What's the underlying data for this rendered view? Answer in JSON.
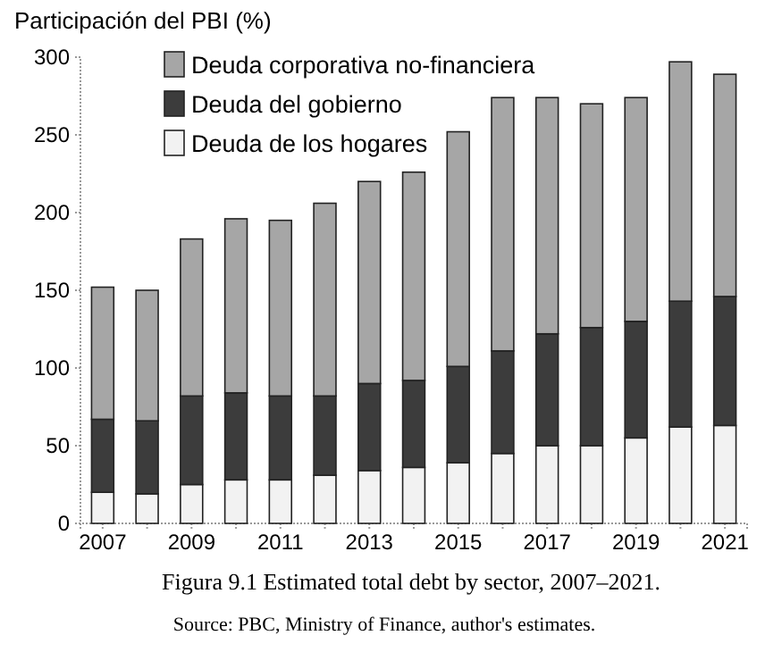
{
  "chart_data": {
    "type": "bar",
    "stacked": true,
    "title": "Figura 9.1 Estimated total debt by sector, 2007–2021.",
    "ylabel": "Participación del PBI (%)",
    "annotations": [
      "Source: PBC, Ministry of Finance, author's estimates."
    ],
    "categories": [
      "2007",
      null,
      "2009",
      null,
      "2011",
      null,
      "2013",
      null,
      "2015",
      null,
      "2017",
      null,
      "2019",
      null,
      "2021"
    ],
    "series": [
      {
        "name": "Deuda de los hogares",
        "color": "#f2f2f2",
        "values": [
          20,
          19,
          25,
          28,
          28,
          31,
          34,
          36,
          39,
          45,
          50,
          50,
          55,
          62,
          63
        ]
      },
      {
        "name": "Deuda del gobierno",
        "color": "#3c3c3c",
        "values": [
          47,
          47,
          57,
          56,
          54,
          51,
          56,
          56,
          62,
          66,
          72,
          76,
          75,
          81,
          83
        ]
      },
      {
        "name": "Deuda corporativa no-financiera",
        "color": "#a6a6a6",
        "values": [
          85,
          84,
          101,
          112,
          113,
          124,
          130,
          134,
          151,
          163,
          152,
          144,
          144,
          154,
          143
        ]
      }
    ],
    "ylim": [
      0,
      300
    ],
    "yticks": [
      0,
      50,
      100,
      150,
      200,
      250,
      300
    ],
    "legend": "top left"
  }
}
